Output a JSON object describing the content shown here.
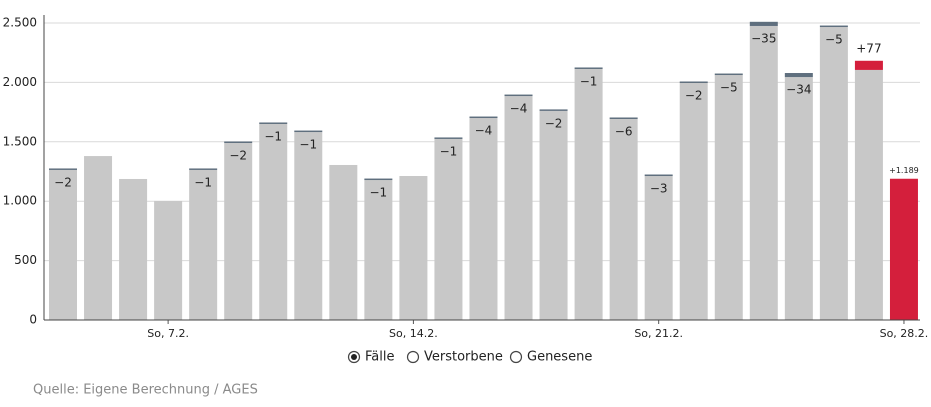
{
  "chart_data": {
    "type": "bar",
    "categories": [
      null,
      null,
      null,
      "So, 7.2.",
      null,
      null,
      null,
      null,
      null,
      null,
      "So, 14.2.",
      null,
      null,
      null,
      null,
      null,
      null,
      "So, 21.2.",
      null,
      null,
      null,
      null,
      null,
      null,
      "So, 28.2."
    ],
    "series": [
      {
        "name": "Fälle",
        "color": "#c8c8c8",
        "values": [
          1263,
          1380,
          1187,
          1002,
          1263,
          1490,
          1650,
          1582,
          1305,
          1178,
          1212,
          1524,
          1700,
          1885,
          1760,
          2113,
          1692,
          1212,
          1995,
          2062,
          2475,
          2045,
          2466,
          2105,
          null
        ]
      },
      {
        "name": "Verstorbene",
        "color": "#5f6f7e",
        "values": [
          -2,
          null,
          null,
          null,
          -1,
          -2,
          -1,
          -1,
          null,
          -1,
          null,
          -1,
          -4,
          -4,
          -2,
          -1,
          -6,
          -3,
          -2,
          -5,
          -35,
          -34,
          -5,
          null,
          null
        ],
        "value_labels": [
          "−2",
          null,
          null,
          null,
          "−1",
          "−2",
          "−1",
          "−1",
          null,
          "−1",
          null,
          "−1",
          "−4",
          "−4",
          "−2",
          "−1",
          "−6",
          "−3",
          "−2",
          "−5",
          "−35",
          "−34",
          "−5",
          null,
          null
        ]
      },
      {
        "name": "Genesene",
        "color": "#d41f3c",
        "values": [
          null,
          null,
          null,
          null,
          null,
          null,
          null,
          null,
          null,
          null,
          null,
          null,
          null,
          null,
          null,
          null,
          null,
          null,
          null,
          null,
          null,
          null,
          null,
          77,
          1189
        ],
        "value_labels": [
          null,
          null,
          null,
          null,
          null,
          null,
          null,
          null,
          null,
          null,
          null,
          null,
          null,
          null,
          null,
          null,
          null,
          null,
          null,
          null,
          null,
          null,
          null,
          "+77",
          "+1.189"
        ]
      }
    ],
    "ylim": [
      0,
      2500
    ],
    "yticks": [
      0,
      500,
      {
        "value": 1000,
        "label": "1.000"
      },
      {
        "value": 1500,
        "label": "1.500"
      },
      {
        "value": 2000,
        "label": "2.000"
      },
      {
        "value": 2500,
        "label": "2.500"
      }
    ],
    "grid": true,
    "legend_selected": "Fälle",
    "source": "Quelle: Eigene Berechnung / AGES"
  }
}
